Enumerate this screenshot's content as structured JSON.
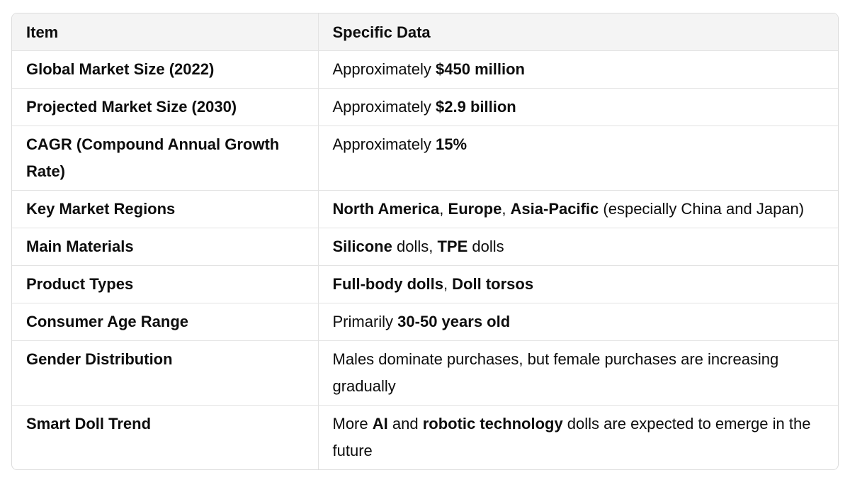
{
  "headers": {
    "item": "Item",
    "data": "Specific Data"
  },
  "rows": [
    {
      "item": "Global Market Size (2022)",
      "data": [
        {
          "t": "Approximately "
        },
        {
          "t": "$450 million",
          "b": true
        }
      ]
    },
    {
      "item": "Projected Market Size (2030)",
      "data": [
        {
          "t": "Approximately "
        },
        {
          "t": "$2.9 billion",
          "b": true
        }
      ]
    },
    {
      "item": "CAGR (Compound Annual Growth Rate)",
      "data": [
        {
          "t": "Approximately "
        },
        {
          "t": "15%",
          "b": true
        }
      ]
    },
    {
      "item": "Key Market Regions",
      "data": [
        {
          "t": "North America",
          "b": true
        },
        {
          "t": ", "
        },
        {
          "t": "Europe",
          "b": true
        },
        {
          "t": ", "
        },
        {
          "t": "Asia-Pacific",
          "b": true
        },
        {
          "t": " (especially China and Japan)"
        }
      ]
    },
    {
      "item": "Main Materials",
      "data": [
        {
          "t": "Silicone",
          "b": true
        },
        {
          "t": " dolls, "
        },
        {
          "t": "TPE",
          "b": true
        },
        {
          "t": " dolls"
        }
      ]
    },
    {
      "item": "Product Types",
      "data": [
        {
          "t": "Full-body dolls",
          "b": true
        },
        {
          "t": ", "
        },
        {
          "t": "Doll torsos",
          "b": true
        }
      ]
    },
    {
      "item": "Consumer Age Range",
      "data": [
        {
          "t": "Primarily "
        },
        {
          "t": "30-50 years old",
          "b": true
        }
      ]
    },
    {
      "item": "Gender Distribution",
      "data": [
        {
          "t": "Males dominate purchases, but female purchases are increasing gradually"
        }
      ]
    },
    {
      "item": "Smart Doll Trend",
      "data": [
        {
          "t": "More "
        },
        {
          "t": "AI",
          "b": true
        },
        {
          "t": " and "
        },
        {
          "t": "robotic technology",
          "b": true
        },
        {
          "t": " dolls are expected to emerge in the future"
        }
      ]
    }
  ]
}
